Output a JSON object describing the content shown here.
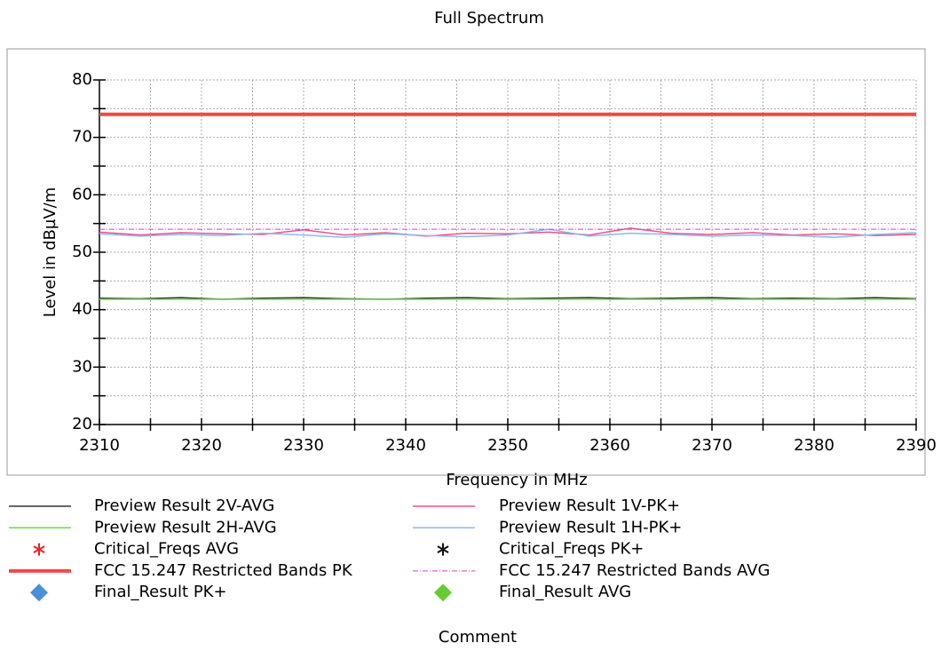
{
  "chart_data": {
    "type": "line",
    "title": "Full Spectrum",
    "xlabel": "Frequency in MHz",
    "ylabel": "Level in dBµV/m",
    "footer": "Comment",
    "x": [
      2310,
      2314,
      2318,
      2322,
      2326,
      2330,
      2334,
      2338,
      2342,
      2346,
      2350,
      2354,
      2358,
      2362,
      2366,
      2370,
      2374,
      2378,
      2382,
      2386,
      2390
    ],
    "xlim": [
      2310,
      2390
    ],
    "xticks": [
      2310,
      2320,
      2330,
      2340,
      2350,
      2360,
      2370,
      2380,
      2390
    ],
    "xminor_ticks": [
      2315,
      2325,
      2335,
      2345,
      2355,
      2365,
      2375,
      2385
    ],
    "ylim": [
      20,
      80
    ],
    "yticks": [
      20,
      30,
      40,
      50,
      60,
      70,
      80
    ],
    "yminor_ticks": [
      25,
      35,
      45,
      55,
      65,
      75
    ],
    "grid": true,
    "series": [
      {
        "name": "Preview Result 2V-AVG",
        "color": "#333333",
        "width": 1.5,
        "values": [
          42.0,
          41.9,
          42.1,
          41.8,
          42.0,
          42.1,
          41.9,
          41.8,
          42.0,
          42.1,
          41.9,
          42.0,
          42.1,
          41.9,
          42.0,
          42.1,
          41.9,
          42.0,
          41.9,
          42.1,
          41.9
        ]
      },
      {
        "name": "Preview Result 1V-PK+",
        "color": "#f0508a",
        "width": 1.5,
        "values": [
          53.5,
          53.0,
          53.4,
          53.2,
          53.1,
          53.9,
          53.0,
          53.4,
          52.8,
          53.3,
          53.2,
          53.5,
          53.0,
          54.2,
          53.3,
          53.1,
          53.4,
          53.0,
          53.2,
          52.9,
          53.1
        ]
      },
      {
        "name": "Preview Result 2H-AVG",
        "color": "#66dd44",
        "width": 1.5,
        "values": [
          41.8,
          41.8,
          41.8,
          41.8,
          41.8,
          41.8,
          41.8,
          41.8,
          41.8,
          41.8,
          41.8,
          41.8,
          41.8,
          41.8,
          41.8,
          41.8,
          41.8,
          41.8,
          41.8,
          41.8,
          41.8
        ]
      },
      {
        "name": "Preview Result 1H-PK+",
        "color": "#88bbee",
        "width": 1.5,
        "values": [
          53.2,
          52.8,
          53.1,
          52.9,
          53.3,
          53.0,
          52.6,
          53.2,
          52.9,
          52.7,
          53.0,
          54.0,
          52.8,
          53.3,
          53.1,
          52.8,
          53.0,
          52.9,
          52.6,
          53.1,
          53.4
        ]
      },
      {
        "name": "Critical_Freqs AVG",
        "color": "#ee2222",
        "marker": "asterisk",
        "values": [
          null,
          null,
          null,
          null,
          null,
          null,
          null,
          null,
          null,
          null,
          null,
          null,
          null,
          null,
          null,
          null,
          null,
          null,
          null,
          null,
          null
        ]
      },
      {
        "name": "Critical_Freqs PK+",
        "color": "#111111",
        "marker": "asterisk",
        "values": [
          null,
          null,
          null,
          null,
          null,
          null,
          null,
          null,
          null,
          null,
          null,
          null,
          null,
          null,
          null,
          null,
          null,
          null,
          null,
          null,
          null
        ]
      },
      {
        "name": "FCC 15.247 Restricted Bands PK",
        "color": "#f04848",
        "width": 4,
        "values": [
          74,
          74,
          74,
          74,
          74,
          74,
          74,
          74,
          74,
          74,
          74,
          74,
          74,
          74,
          74,
          74,
          74,
          74,
          74,
          74,
          74
        ]
      },
      {
        "name": "FCC 15.247 Restricted Bands AVG",
        "color": "#cc44cc",
        "width": 1,
        "dash": "6 2 1 2",
        "values": [
          54,
          54,
          54,
          54,
          54,
          54,
          54,
          54,
          54,
          54,
          54,
          54,
          54,
          54,
          54,
          54,
          54,
          54,
          54,
          54,
          54
        ]
      },
      {
        "name": "Final_Result PK+",
        "color": "#4a90d9",
        "marker": "diamond",
        "values": [
          null,
          null,
          null,
          null,
          null,
          null,
          null,
          null,
          null,
          null,
          null,
          null,
          null,
          null,
          null,
          null,
          null,
          null,
          null,
          null,
          null
        ]
      },
      {
        "name": "Final_Result AVG",
        "color": "#66cc33",
        "marker": "diamond",
        "values": [
          null,
          null,
          null,
          null,
          null,
          null,
          null,
          null,
          null,
          null,
          null,
          null,
          null,
          null,
          null,
          null,
          null,
          null,
          null,
          null,
          null
        ]
      }
    ]
  }
}
